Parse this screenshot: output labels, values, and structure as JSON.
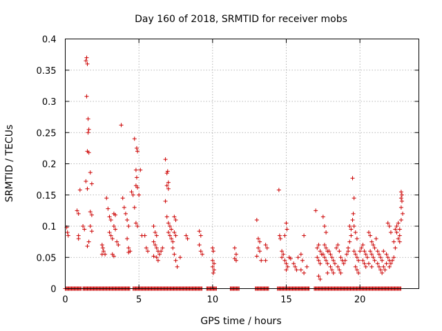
{
  "chart_data": {
    "type": "scatter",
    "title": "Day 160 of 2018, SRMTID for receiver mobs",
    "xlabel": "GPS time / hours",
    "ylabel": "SRMTID / TECUs",
    "xlim": [
      0,
      24
    ],
    "ylim": [
      0,
      0.4
    ],
    "xticks": [
      0,
      5,
      10,
      15,
      20
    ],
    "yticks": [
      0,
      0.05,
      0.1,
      0.15,
      0.2,
      0.25,
      0.3,
      0.35,
      0.4
    ],
    "xtick_labels": [
      "0",
      "5",
      "10",
      "15",
      "20"
    ],
    "ytick_labels": [
      "0",
      "0.05",
      "0.1",
      "0.15",
      "0.2",
      "0.25",
      "0.3",
      "0.35",
      "0.4"
    ],
    "grid": true,
    "marker": "+",
    "color": "#cc0000",
    "series": [
      {
        "name": "mobs",
        "points": [
          [
            0.1,
            0.098
          ],
          [
            0.15,
            0.09
          ],
          [
            0.2,
            0.085
          ],
          [
            0.8,
            0.125
          ],
          [
            0.9,
            0.12
          ],
          [
            0.9,
            0.085
          ],
          [
            0.9,
            0.08
          ],
          [
            1.0,
            0.158
          ],
          [
            1.2,
            0.1
          ],
          [
            1.3,
            0.095
          ],
          [
            1.4,
            0.365
          ],
          [
            1.45,
            0.37
          ],
          [
            1.5,
            0.36
          ],
          [
            1.45,
            0.308
          ],
          [
            1.55,
            0.272
          ],
          [
            1.6,
            0.255
          ],
          [
            1.55,
            0.25
          ],
          [
            1.5,
            0.22
          ],
          [
            1.6,
            0.218
          ],
          [
            1.4,
            0.172
          ],
          [
            1.5,
            0.16
          ],
          [
            1.7,
            0.186
          ],
          [
            1.8,
            0.168
          ],
          [
            1.7,
            0.123
          ],
          [
            1.8,
            0.118
          ],
          [
            1.7,
            0.1
          ],
          [
            1.8,
            0.092
          ],
          [
            1.6,
            0.075
          ],
          [
            1.5,
            0.068
          ],
          [
            2.5,
            0.07
          ],
          [
            2.55,
            0.065
          ],
          [
            2.6,
            0.06
          ],
          [
            2.5,
            0.055
          ],
          [
            2.7,
            0.055
          ],
          [
            2.8,
            0.145
          ],
          [
            2.9,
            0.128
          ],
          [
            3.0,
            0.115
          ],
          [
            3.1,
            0.11
          ],
          [
            3.0,
            0.09
          ],
          [
            3.1,
            0.085
          ],
          [
            3.2,
            0.08
          ],
          [
            3.3,
            0.12
          ],
          [
            3.4,
            0.118
          ],
          [
            3.3,
            0.1
          ],
          [
            3.4,
            0.095
          ],
          [
            3.5,
            0.075
          ],
          [
            3.6,
            0.07
          ],
          [
            3.2,
            0.055
          ],
          [
            3.3,
            0.052
          ],
          [
            3.8,
            0.262
          ],
          [
            3.9,
            0.145
          ],
          [
            4.0,
            0.13
          ],
          [
            4.1,
            0.12
          ],
          [
            4.2,
            0.11
          ],
          [
            4.3,
            0.1
          ],
          [
            4.2,
            0.08
          ],
          [
            4.3,
            0.065
          ],
          [
            4.4,
            0.06
          ],
          [
            4.3,
            0.058
          ],
          [
            4.5,
            0.155
          ],
          [
            4.6,
            0.15
          ],
          [
            4.7,
            0.24
          ],
          [
            4.8,
            0.19
          ],
          [
            4.85,
            0.178
          ],
          [
            4.8,
            0.165
          ],
          [
            4.9,
            0.162
          ],
          [
            4.85,
            0.225
          ],
          [
            4.9,
            0.22
          ],
          [
            5.0,
            0.15
          ],
          [
            5.1,
            0.19
          ],
          [
            4.7,
            0.13
          ],
          [
            4.8,
            0.105
          ],
          [
            4.9,
            0.1
          ],
          [
            5.2,
            0.085
          ],
          [
            5.4,
            0.085
          ],
          [
            5.5,
            0.065
          ],
          [
            5.6,
            0.06
          ],
          [
            6.0,
            0.1
          ],
          [
            6.1,
            0.09
          ],
          [
            6.2,
            0.085
          ],
          [
            6.0,
            0.075
          ],
          [
            6.1,
            0.07
          ],
          [
            6.2,
            0.065
          ],
          [
            6.3,
            0.06
          ],
          [
            6.0,
            0.052
          ],
          [
            6.2,
            0.05
          ],
          [
            6.3,
            0.045
          ],
          [
            6.4,
            0.055
          ],
          [
            6.5,
            0.06
          ],
          [
            6.6,
            0.065
          ],
          [
            6.8,
            0.207
          ],
          [
            6.9,
            0.185
          ],
          [
            6.95,
            0.188
          ],
          [
            7.0,
            0.17
          ],
          [
            6.9,
            0.165
          ],
          [
            7.0,
            0.16
          ],
          [
            6.8,
            0.14
          ],
          [
            6.9,
            0.115
          ],
          [
            7.0,
            0.105
          ],
          [
            7.1,
            0.1
          ],
          [
            7.2,
            0.095
          ],
          [
            7.0,
            0.09
          ],
          [
            7.1,
            0.085
          ],
          [
            7.2,
            0.08
          ],
          [
            7.3,
            0.075
          ],
          [
            7.4,
            0.115
          ],
          [
            7.5,
            0.11
          ],
          [
            7.4,
            0.09
          ],
          [
            7.5,
            0.085
          ],
          [
            7.3,
            0.065
          ],
          [
            7.4,
            0.055
          ],
          [
            7.5,
            0.045
          ],
          [
            7.6,
            0.035
          ],
          [
            7.8,
            0.05
          ],
          [
            8.2,
            0.085
          ],
          [
            8.3,
            0.08
          ],
          [
            9.1,
            0.092
          ],
          [
            9.2,
            0.085
          ],
          [
            9.1,
            0.07
          ],
          [
            9.2,
            0.06
          ],
          [
            9.3,
            0.055
          ],
          [
            10.0,
            0.065
          ],
          [
            10.05,
            0.06
          ],
          [
            10.0,
            0.045
          ],
          [
            10.1,
            0.04
          ],
          [
            10.0,
            0.035
          ],
          [
            10.1,
            0.03
          ],
          [
            10.05,
            0.025
          ],
          [
            11.5,
            0.065
          ],
          [
            11.6,
            0.055
          ],
          [
            11.5,
            0.048
          ],
          [
            11.6,
            0.045
          ],
          [
            13.0,
            0.11
          ],
          [
            13.1,
            0.08
          ],
          [
            13.2,
            0.075
          ],
          [
            13.1,
            0.065
          ],
          [
            13.2,
            0.06
          ],
          [
            13.0,
            0.052
          ],
          [
            13.3,
            0.045
          ],
          [
            13.6,
            0.07
          ],
          [
            13.7,
            0.065
          ],
          [
            13.6,
            0.045
          ],
          [
            14.5,
            0.158
          ],
          [
            14.55,
            0.085
          ],
          [
            14.6,
            0.08
          ],
          [
            14.7,
            0.06
          ],
          [
            14.8,
            0.055
          ],
          [
            14.7,
            0.05
          ],
          [
            14.9,
            0.045
          ],
          [
            15.0,
            0.105
          ],
          [
            15.05,
            0.095
          ],
          [
            14.9,
            0.085
          ],
          [
            15.0,
            0.04
          ],
          [
            15.1,
            0.035
          ],
          [
            15.0,
            0.03
          ],
          [
            15.2,
            0.05
          ],
          [
            15.3,
            0.048
          ],
          [
            15.5,
            0.04
          ],
          [
            15.6,
            0.035
          ],
          [
            15.7,
            0.03
          ],
          [
            15.8,
            0.05
          ],
          [
            16.0,
            0.055
          ],
          [
            16.1,
            0.045
          ],
          [
            16.2,
            0.085
          ],
          [
            16.0,
            0.03
          ],
          [
            16.2,
            0.025
          ],
          [
            16.4,
            0.035
          ],
          [
            17.0,
            0.125
          ],
          [
            17.1,
            0.065
          ],
          [
            17.2,
            0.07
          ],
          [
            17.3,
            0.06
          ],
          [
            17.4,
            0.055
          ],
          [
            17.1,
            0.05
          ],
          [
            17.2,
            0.045
          ],
          [
            17.3,
            0.04
          ],
          [
            17.2,
            0.02
          ],
          [
            17.3,
            0.015
          ],
          [
            17.5,
            0.115
          ],
          [
            17.6,
            0.1
          ],
          [
            17.7,
            0.09
          ],
          [
            17.6,
            0.07
          ],
          [
            17.7,
            0.065
          ],
          [
            17.8,
            0.06
          ],
          [
            17.5,
            0.055
          ],
          [
            17.6,
            0.05
          ],
          [
            17.7,
            0.045
          ],
          [
            17.8,
            0.04
          ],
          [
            17.9,
            0.06
          ],
          [
            18.0,
            0.055
          ],
          [
            18.1,
            0.05
          ],
          [
            18.2,
            0.045
          ],
          [
            18.3,
            0.04
          ],
          [
            18.0,
            0.035
          ],
          [
            18.1,
            0.03
          ],
          [
            18.2,
            0.025
          ],
          [
            17.8,
            0.025
          ],
          [
            18.4,
            0.065
          ],
          [
            18.5,
            0.07
          ],
          [
            18.6,
            0.06
          ],
          [
            18.7,
            0.05
          ],
          [
            18.8,
            0.045
          ],
          [
            18.5,
            0.035
          ],
          [
            18.6,
            0.03
          ],
          [
            18.7,
            0.025
          ],
          [
            18.9,
            0.04
          ],
          [
            19.0,
            0.045
          ],
          [
            19.1,
            0.055
          ],
          [
            19.2,
            0.06
          ],
          [
            19.3,
            0.1
          ],
          [
            19.4,
            0.095
          ],
          [
            19.5,
            0.11
          ],
          [
            19.55,
            0.12
          ],
          [
            19.6,
            0.145
          ],
          [
            19.5,
            0.177
          ],
          [
            19.4,
            0.085
          ],
          [
            19.3,
            0.075
          ],
          [
            19.2,
            0.065
          ],
          [
            19.6,
            0.06
          ],
          [
            19.7,
            0.055
          ],
          [
            19.8,
            0.05
          ],
          [
            19.9,
            0.045
          ],
          [
            19.7,
            0.035
          ],
          [
            19.8,
            0.03
          ],
          [
            19.9,
            0.025
          ],
          [
            19.7,
            0.09
          ],
          [
            19.8,
            0.08
          ],
          [
            19.6,
            0.1
          ],
          [
            20.0,
            0.06
          ],
          [
            20.1,
            0.065
          ],
          [
            20.2,
            0.07
          ],
          [
            20.3,
            0.06
          ],
          [
            20.4,
            0.055
          ],
          [
            20.5,
            0.05
          ],
          [
            20.2,
            0.045
          ],
          [
            20.3,
            0.04
          ],
          [
            20.4,
            0.035
          ],
          [
            20.6,
            0.09
          ],
          [
            20.7,
            0.085
          ],
          [
            20.8,
            0.075
          ],
          [
            20.9,
            0.07
          ],
          [
            21.0,
            0.065
          ],
          [
            20.7,
            0.06
          ],
          [
            20.8,
            0.055
          ],
          [
            20.9,
            0.05
          ],
          [
            21.0,
            0.045
          ],
          [
            20.6,
            0.04
          ],
          [
            20.8,
            0.035
          ],
          [
            21.1,
            0.08
          ],
          [
            21.2,
            0.06
          ],
          [
            21.3,
            0.055
          ],
          [
            21.4,
            0.05
          ],
          [
            21.5,
            0.045
          ],
          [
            21.2,
            0.04
          ],
          [
            21.3,
            0.035
          ],
          [
            21.4,
            0.03
          ],
          [
            21.6,
            0.035
          ],
          [
            21.7,
            0.03
          ],
          [
            21.5,
            0.025
          ],
          [
            21.6,
            0.06
          ],
          [
            21.8,
            0.055
          ],
          [
            21.9,
            0.05
          ],
          [
            22.0,
            0.045
          ],
          [
            21.8,
            0.04
          ],
          [
            22.0,
            0.035
          ],
          [
            22.1,
            0.04
          ],
          [
            22.2,
            0.045
          ],
          [
            22.3,
            0.05
          ],
          [
            21.9,
            0.105
          ],
          [
            22.0,
            0.1
          ],
          [
            22.1,
            0.09
          ],
          [
            22.3,
            0.075
          ],
          [
            22.4,
            0.065
          ],
          [
            22.5,
            0.09
          ],
          [
            22.6,
            0.08
          ],
          [
            22.7,
            0.085
          ],
          [
            22.6,
            0.105
          ],
          [
            22.5,
            0.1
          ],
          [
            22.4,
            0.095
          ],
          [
            22.7,
            0.075
          ],
          [
            22.8,
            0.155
          ],
          [
            22.85,
            0.15
          ],
          [
            22.8,
            0.145
          ],
          [
            22.85,
            0.14
          ],
          [
            22.8,
            0.13
          ],
          [
            22.9,
            0.12
          ],
          [
            22.8,
            0.11
          ],
          [
            22.7,
            0.095
          ]
        ],
        "zero_band_x_ranges": [
          [
            0.0,
            1.1
          ],
          [
            1.2,
            4.4
          ],
          [
            4.6,
            9.3
          ],
          [
            9.6,
            10.3
          ],
          [
            11.2,
            11.8
          ],
          [
            12.9,
            13.8
          ],
          [
            14.4,
            16.6
          ],
          [
            16.9,
            22.8
          ]
        ]
      }
    ]
  }
}
